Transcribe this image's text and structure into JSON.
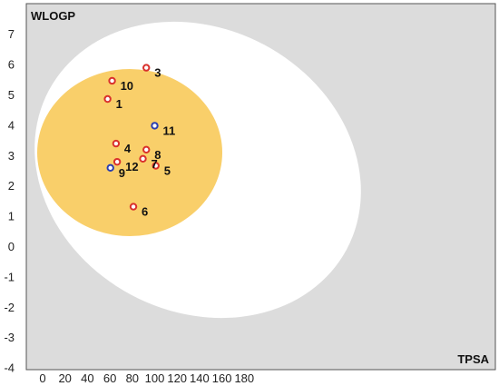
{
  "chart_data": {
    "type": "scatter",
    "xlabel": "TPSA",
    "ylabel": "WLOGP",
    "xlim": [
      -10,
      200
    ],
    "ylim": [
      -4,
      7.6
    ],
    "x_ticks": [
      "0",
      "20",
      "40",
      "60",
      "80",
      "100",
      "120",
      "140",
      "160",
      "180"
    ],
    "y_ticks": [
      "-4",
      "-3",
      "-2",
      "-1",
      "0",
      "1",
      "2",
      "3",
      "4",
      "5",
      "6",
      "7"
    ],
    "colors": {
      "white_region": "#ffffff",
      "yolk_region": "#f9cf6a",
      "plot_background": "#dcdcdc",
      "red_points": "#d9302c",
      "blue_points": "#2b3fb0"
    },
    "points": [
      {
        "label": "1",
        "x": 58,
        "y": 4.85,
        "color": "red"
      },
      {
        "label": "3",
        "x": 92.5,
        "y": 5.88,
        "color": "red"
      },
      {
        "label": "4",
        "x": 65.5,
        "y": 3.38,
        "color": "red"
      },
      {
        "label": "5",
        "x": 101,
        "y": 2.65,
        "color": "red"
      },
      {
        "label": "6",
        "x": 81,
        "y": 1.3,
        "color": "red"
      },
      {
        "label": "7",
        "x": 89.5,
        "y": 2.88,
        "color": "red"
      },
      {
        "label": "8",
        "x": 92.5,
        "y": 3.18,
        "color": "red"
      },
      {
        "label": "9",
        "x": 60.5,
        "y": 2.58,
        "color": "blue"
      },
      {
        "label": "10",
        "x": 62,
        "y": 5.45,
        "color": "red"
      },
      {
        "label": "11",
        "x": 100,
        "y": 3.97,
        "color": "blue"
      },
      {
        "label": "12",
        "x": 66.5,
        "y": 2.78,
        "color": "red"
      }
    ]
  }
}
